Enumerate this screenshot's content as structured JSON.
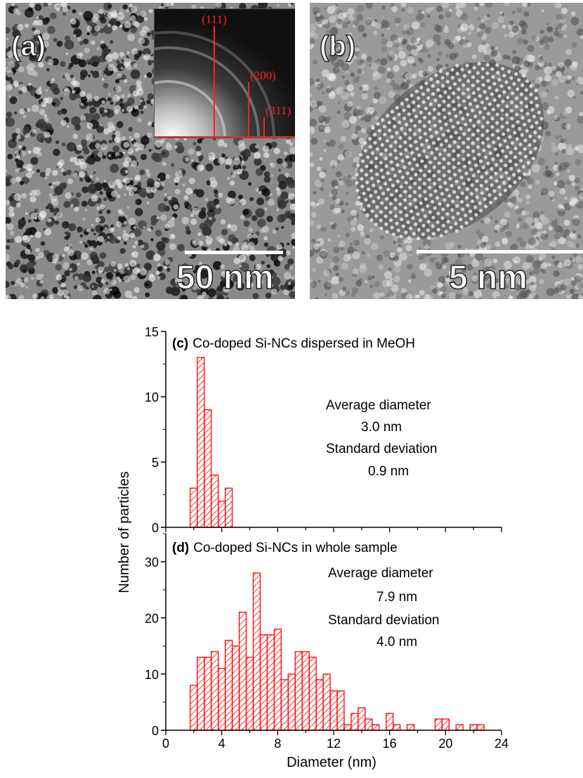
{
  "panel_a": {
    "label": "(a)",
    "scale_bar": "50 nm",
    "inset": {
      "rings": [
        "(111)",
        "(200)",
        "(311)"
      ]
    }
  },
  "panel_b": {
    "label": "(b)",
    "scale_bar": "5 nm"
  },
  "colors": {
    "bars": "#ff0000",
    "rings": "#ff2020",
    "axis": "#000000"
  },
  "chart_data": [
    {
      "type": "bar",
      "panel_label": "(c)",
      "title": "Co-doped Si-NCs dispersed in MeOH",
      "xlabel": "Diameter (nm)",
      "ylabel": "Number of particles",
      "ylim": [
        0,
        15
      ],
      "yticks": [
        0,
        5,
        10,
        15
      ],
      "bin_width": 0.5,
      "bins": [
        {
          "x": 2.0,
          "count": 3
        },
        {
          "x": 2.5,
          "count": 13
        },
        {
          "x": 3.0,
          "count": 9
        },
        {
          "x": 3.5,
          "count": 4
        },
        {
          "x": 4.0,
          "count": 2
        },
        {
          "x": 4.5,
          "count": 3
        }
      ],
      "annotations": [
        "Average diameter",
        "3.0 nm",
        "Standard deviation",
        "0.9 nm"
      ]
    },
    {
      "type": "bar",
      "panel_label": "(d)",
      "title": "Co-doped Si-NCs in whole sample",
      "xlabel": "Diameter (nm)",
      "ylabel": "Number of particles",
      "xlim": [
        0,
        24
      ],
      "xticks": [
        0,
        4,
        8,
        12,
        16,
        20,
        24
      ],
      "ylim": [
        0,
        35
      ],
      "yticks": [
        0,
        10,
        20,
        30
      ],
      "bin_width": 0.5,
      "bins": [
        {
          "x": 2.0,
          "count": 8
        },
        {
          "x": 2.5,
          "count": 13
        },
        {
          "x": 3.0,
          "count": 13
        },
        {
          "x": 3.5,
          "count": 14
        },
        {
          "x": 4.0,
          "count": 11
        },
        {
          "x": 4.5,
          "count": 16
        },
        {
          "x": 5.0,
          "count": 15
        },
        {
          "x": 5.5,
          "count": 21
        },
        {
          "x": 6.0,
          "count": 13
        },
        {
          "x": 6.5,
          "count": 28
        },
        {
          "x": 7.0,
          "count": 17
        },
        {
          "x": 7.5,
          "count": 17
        },
        {
          "x": 8.0,
          "count": 18
        },
        {
          "x": 8.5,
          "count": 9
        },
        {
          "x": 9.0,
          "count": 10
        },
        {
          "x": 9.5,
          "count": 14
        },
        {
          "x": 10.0,
          "count": 14
        },
        {
          "x": 10.5,
          "count": 13
        },
        {
          "x": 11.0,
          "count": 9
        },
        {
          "x": 11.5,
          "count": 10
        },
        {
          "x": 12.0,
          "count": 7
        },
        {
          "x": 12.5,
          "count": 7
        },
        {
          "x": 13.0,
          "count": 1
        },
        {
          "x": 13.5,
          "count": 3
        },
        {
          "x": 14.0,
          "count": 4
        },
        {
          "x": 14.5,
          "count": 2
        },
        {
          "x": 15.0,
          "count": 1
        },
        {
          "x": 16.0,
          "count": 3
        },
        {
          "x": 16.5,
          "count": 1
        },
        {
          "x": 17.5,
          "count": 1
        },
        {
          "x": 19.5,
          "count": 2
        },
        {
          "x": 20.0,
          "count": 2
        },
        {
          "x": 21.0,
          "count": 1
        },
        {
          "x": 22.0,
          "count": 1
        },
        {
          "x": 22.5,
          "count": 1
        }
      ],
      "annotations": [
        "Average diameter",
        "7.9 nm",
        "Standard deviation",
        "4.0 nm"
      ]
    }
  ]
}
